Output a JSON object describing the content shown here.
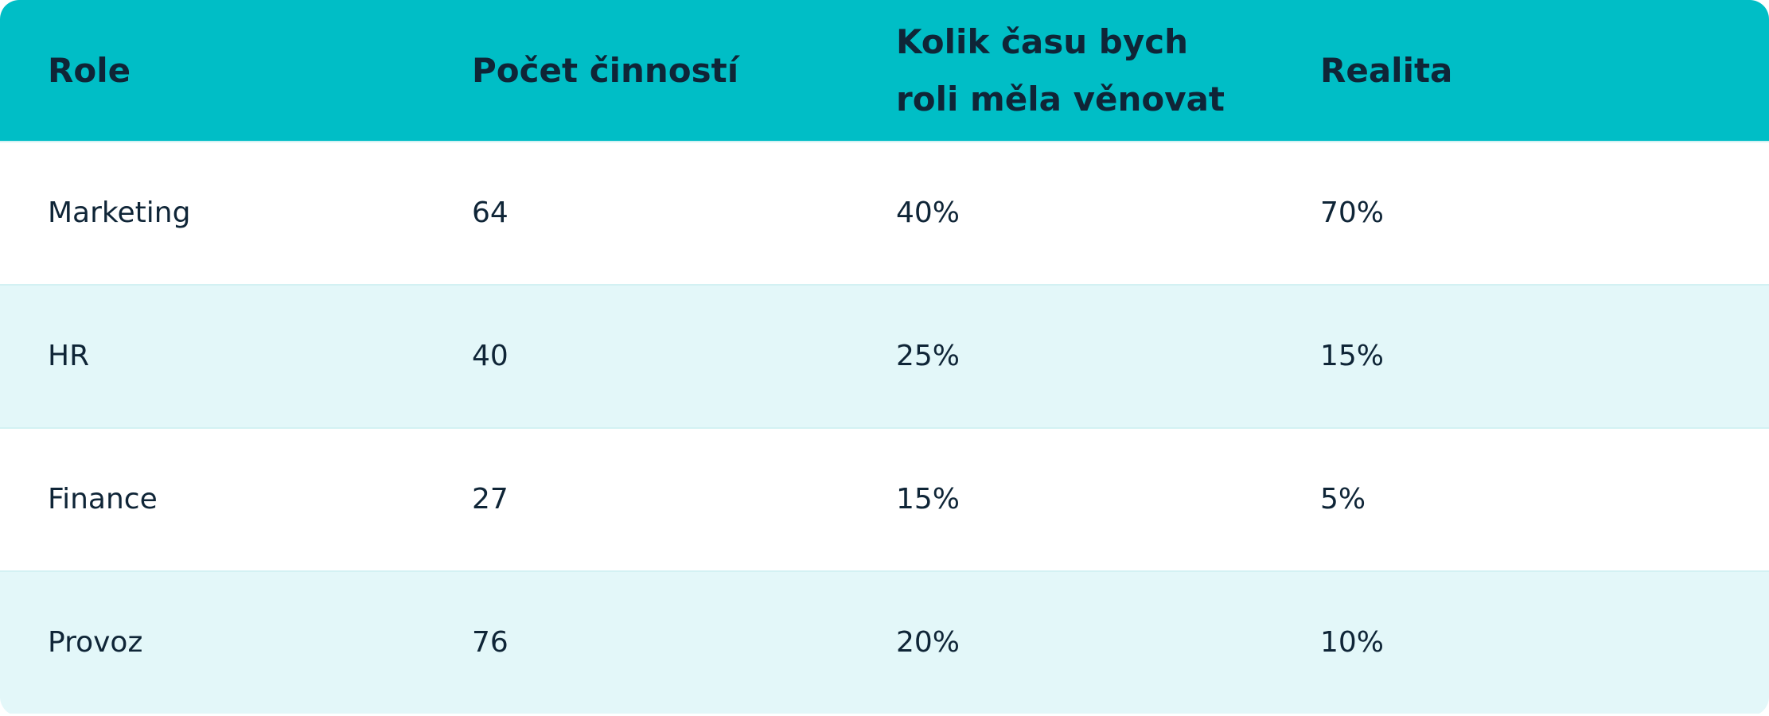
{
  "colors": {
    "header_bg": "#00bec6",
    "row_odd_bg": "#ffffff",
    "row_even_bg": "#e3f7f9",
    "text": "#0f2537",
    "row_divider": "#d3f1f3"
  },
  "table": {
    "headers": [
      "Role",
      "Počet činností",
      "Kolik času bych roli měla věnovat",
      "Realita"
    ],
    "rows": [
      [
        "Marketing",
        "64",
        "40%",
        "70%"
      ],
      [
        "HR",
        "40",
        "25%",
        "15%"
      ],
      [
        "Finance",
        "27",
        "15%",
        "5%"
      ],
      [
        "Provoz",
        "76",
        "20%",
        "10%"
      ]
    ]
  }
}
